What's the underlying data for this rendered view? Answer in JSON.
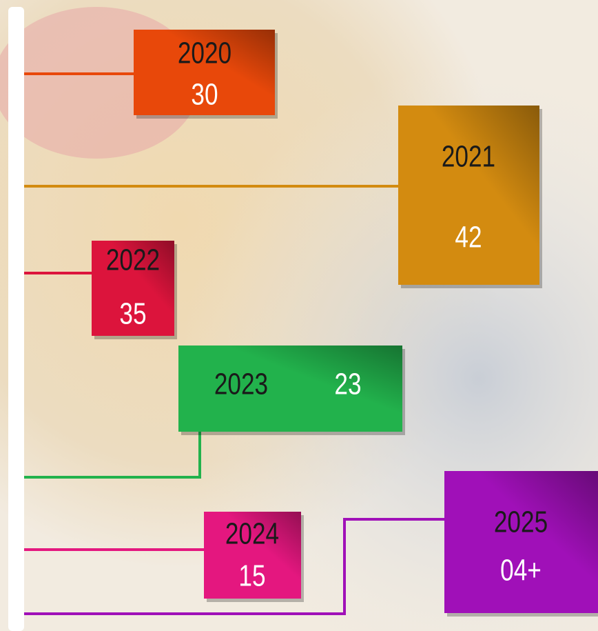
{
  "timeline": {
    "items": [
      {
        "year": "2020",
        "value": "30",
        "color": "#e8480a"
      },
      {
        "year": "2021",
        "value": "42",
        "color": "#d38b10"
      },
      {
        "year": "2022",
        "value": "35",
        "color": "#dc143c"
      },
      {
        "year": "2023",
        "value": "23",
        "color": "#22b24c"
      },
      {
        "year": "2024",
        "value": "15",
        "color": "#e4177f"
      },
      {
        "year": "2025",
        "value": "04+",
        "color": "#a010b8"
      }
    ]
  }
}
